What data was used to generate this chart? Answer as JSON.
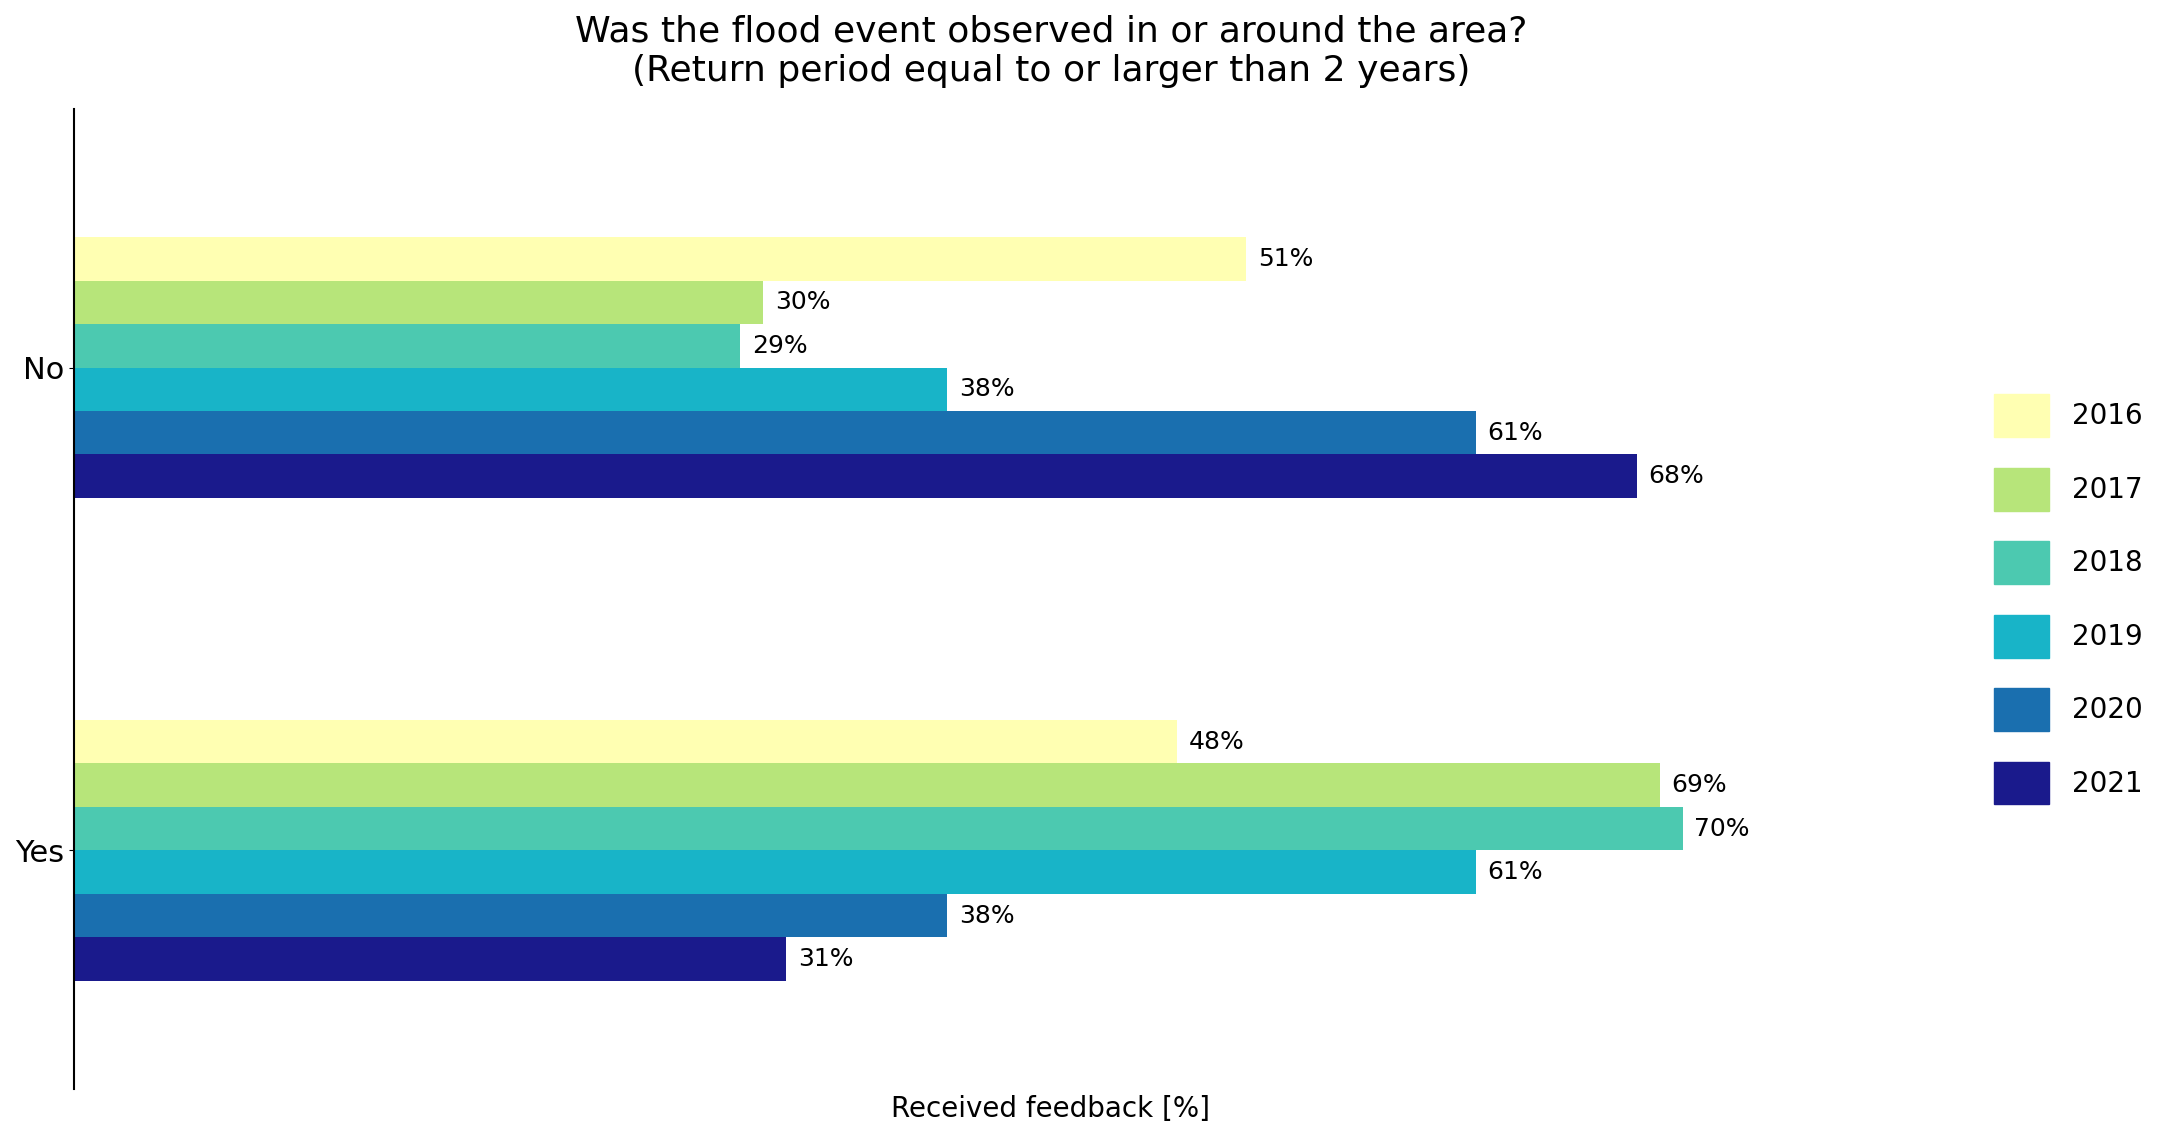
{
  "title_line1": "Was the flood event observed in or around the area?",
  "title_line2": "(Return period equal to or larger than 2 years)",
  "xlabel": "Received feedback [%]",
  "categories": [
    "No",
    "Yes"
  ],
  "years": [
    "2016",
    "2017",
    "2018",
    "2019",
    "2020",
    "2021"
  ],
  "colors": [
    "#ffffb2",
    "#b7e57a",
    "#4cc9b0",
    "#18b4c8",
    "#1a6faf",
    "#1a1a8c"
  ],
  "values": {
    "No": [
      51,
      30,
      29,
      38,
      61,
      68
    ],
    "Yes": [
      48,
      69,
      70,
      61,
      38,
      31
    ]
  },
  "figsize": [
    21.63,
    11.38
  ],
  "dpi": 100,
  "title_fontsize": 26,
  "label_fontsize": 20,
  "tick_fontsize": 22,
  "legend_fontsize": 20,
  "annotation_fontsize": 18,
  "bar_height": 0.09,
  "bar_gap": 0.0,
  "group_sep": 0.9
}
